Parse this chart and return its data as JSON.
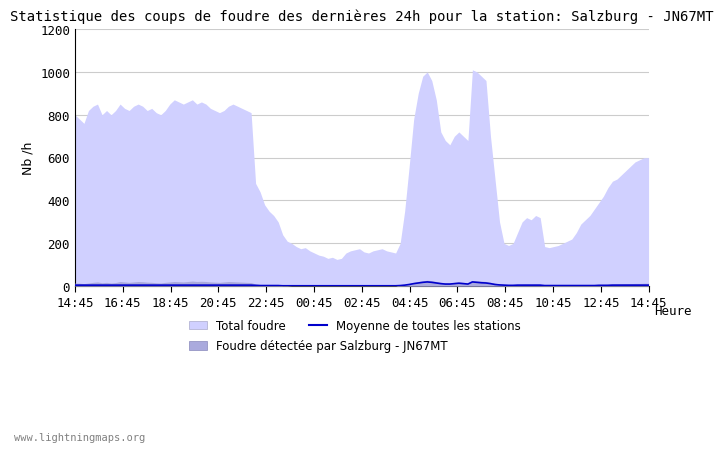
{
  "title": "Statistique des coups de foudre des dernières 24h pour la station: Salzburg - JN67MT",
  "xlabel": "Heure",
  "ylabel": "Nb /h",
  "ylim": [
    0,
    1200
  ],
  "yticks": [
    0,
    200,
    400,
    600,
    800,
    1000,
    1200
  ],
  "xtick_labels": [
    "14:45",
    "16:45",
    "18:45",
    "20:45",
    "22:45",
    "00:45",
    "02:45",
    "04:45",
    "06:45",
    "08:45",
    "10:45",
    "12:45",
    "14:45"
  ],
  "color_total": "#d0d0ff",
  "color_detected": "#aaaadd",
  "color_line": "#0000cc",
  "watermark": "www.lightningmaps.org",
  "legend_total": "Total foudre",
  "legend_detected": "Foudre détectée par Salzburg - JN67MT",
  "legend_mean": "Moyenne de toutes les stations",
  "total_values": [
    800,
    780,
    760,
    820,
    840,
    850,
    800,
    820,
    800,
    820,
    850,
    830,
    820,
    840,
    850,
    840,
    820,
    830,
    810,
    800,
    820,
    850,
    870,
    860,
    850,
    860,
    870,
    850,
    860,
    850,
    830,
    820,
    810,
    820,
    840,
    850,
    840,
    830,
    820,
    810,
    480,
    440,
    380,
    350,
    330,
    300,
    240,
    210,
    200,
    185,
    175,
    180,
    165,
    155,
    145,
    140,
    130,
    135,
    125,
    130,
    155,
    165,
    170,
    175,
    160,
    155,
    165,
    170,
    175,
    165,
    160,
    155,
    200,
    350,
    560,
    780,
    900,
    980,
    1000,
    960,
    870,
    720,
    680,
    660,
    700,
    720,
    700,
    680,
    1010,
    1000,
    980,
    960,
    700,
    500,
    300,
    200,
    190,
    200,
    250,
    300,
    320,
    310,
    330,
    320,
    185,
    180,
    185,
    190,
    200,
    210,
    220,
    250,
    290,
    310,
    330,
    360,
    390,
    420,
    460,
    490,
    500,
    520,
    540,
    560,
    580,
    590,
    600,
    600
  ],
  "detected_values": [
    15,
    14,
    12,
    15,
    18,
    20,
    16,
    18,
    15,
    17,
    22,
    20,
    18,
    20,
    22,
    21,
    19,
    18,
    16,
    15,
    18,
    20,
    22,
    21,
    20,
    22,
    24,
    22,
    23,
    22,
    20,
    19,
    18,
    20,
    22,
    21,
    20,
    19,
    18,
    17,
    10,
    8,
    7,
    6,
    5,
    4,
    3,
    3,
    2,
    2,
    2,
    2,
    2,
    2,
    2,
    2,
    2,
    2,
    2,
    2,
    2,
    2,
    2,
    2,
    2,
    2,
    2,
    2,
    2,
    2,
    2,
    2,
    5,
    8,
    12,
    18,
    22,
    25,
    28,
    26,
    22,
    18,
    16,
    15,
    18,
    20,
    18,
    16,
    26,
    25,
    24,
    22,
    18,
    14,
    10,
    8,
    6,
    6,
    7,
    8,
    9,
    8,
    9,
    8,
    5,
    4,
    5,
    5,
    5,
    5,
    6,
    6,
    7,
    7,
    8,
    8,
    9,
    9,
    10,
    10,
    11,
    11,
    12,
    12,
    13,
    13,
    14,
    14
  ],
  "mean_values": [
    5,
    5,
    5,
    5,
    5,
    5,
    5,
    5,
    5,
    5,
    5,
    5,
    5,
    5,
    5,
    5,
    5,
    5,
    5,
    5,
    5,
    5,
    5,
    5,
    5,
    5,
    5,
    5,
    5,
    5,
    5,
    5,
    5,
    5,
    5,
    5,
    5,
    5,
    5,
    5,
    4,
    3,
    3,
    3,
    3,
    3,
    2,
    2,
    2,
    2,
    2,
    2,
    2,
    2,
    2,
    2,
    2,
    2,
    2,
    2,
    2,
    2,
    2,
    2,
    2,
    2,
    2,
    2,
    2,
    2,
    2,
    2,
    3,
    5,
    8,
    12,
    15,
    18,
    20,
    18,
    15,
    12,
    10,
    10,
    12,
    14,
    12,
    10,
    20,
    18,
    16,
    15,
    12,
    8,
    6,
    5,
    4,
    4,
    5,
    5,
    5,
    5,
    5,
    5,
    3,
    3,
    3,
    3,
    3,
    3,
    3,
    3,
    3,
    3,
    3,
    3,
    4,
    4,
    4,
    5,
    5,
    5,
    5,
    5,
    5,
    5,
    5,
    5
  ]
}
